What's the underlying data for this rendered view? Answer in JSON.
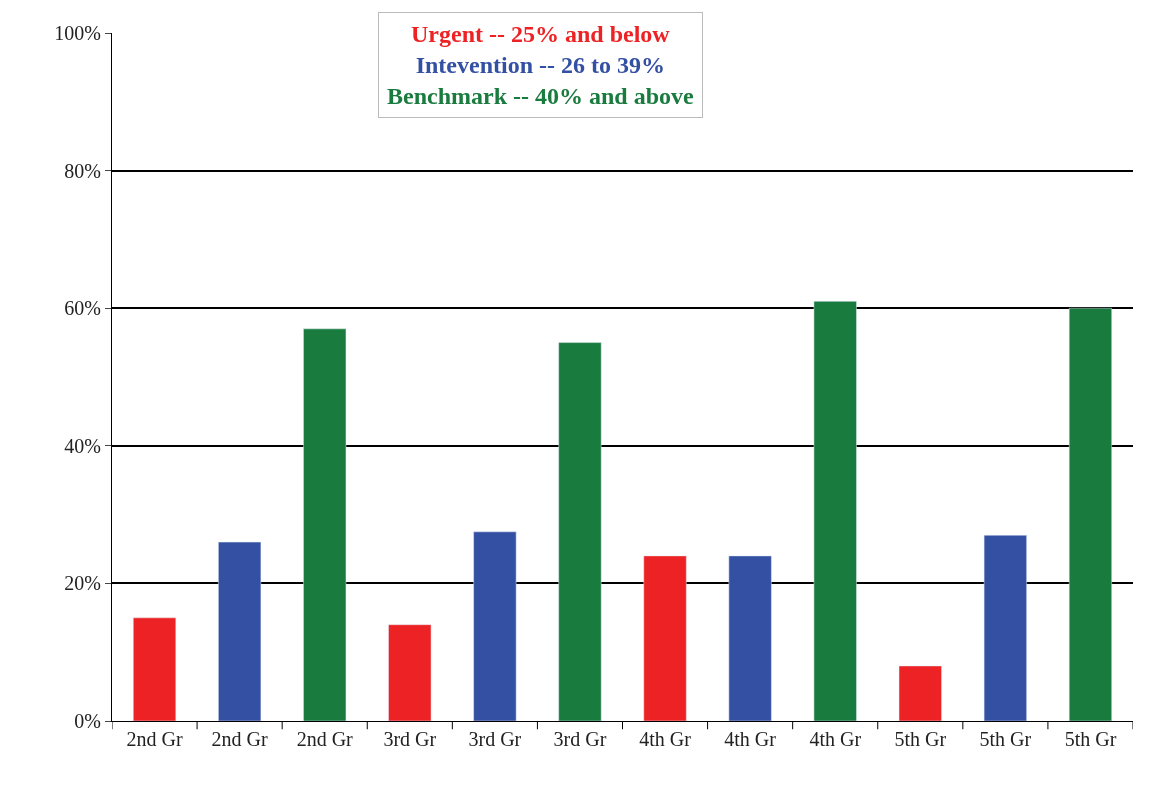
{
  "chart_data": {
    "type": "bar",
    "categories": [
      "2nd Gr",
      "2nd Gr",
      "2nd Gr",
      "3rd Gr",
      "3rd Gr",
      "3rd Gr",
      "4th Gr",
      "4th Gr",
      "4th Gr",
      "5th Gr",
      "5th Gr",
      "5th Gr"
    ],
    "series": [
      {
        "name": "Urgent -- 25% and below",
        "color": "#ed2224",
        "values": [
          15,
          null,
          null,
          14,
          null,
          null,
          24,
          null,
          null,
          8,
          null,
          null
        ]
      },
      {
        "name": "Intevention -- 26 to 39%",
        "color": "#3450a3",
        "values": [
          null,
          26,
          null,
          null,
          27.5,
          null,
          null,
          24,
          null,
          null,
          27,
          null
        ]
      },
      {
        "name": "Benchmark -- 40% and above",
        "color": "#197b3e",
        "values": [
          null,
          null,
          57,
          null,
          null,
          55,
          null,
          null,
          61,
          null,
          null,
          60
        ]
      }
    ],
    "ylim": [
      0,
      100
    ],
    "yticks": [
      {
        "value": 0,
        "label": "0%"
      },
      {
        "value": 20,
        "label": "20%"
      },
      {
        "value": 40,
        "label": "40%"
      },
      {
        "value": 60,
        "label": "60%"
      },
      {
        "value": 80,
        "label": "80%"
      },
      {
        "value": 100,
        "label": "100%"
      }
    ],
    "grid": "y"
  }
}
